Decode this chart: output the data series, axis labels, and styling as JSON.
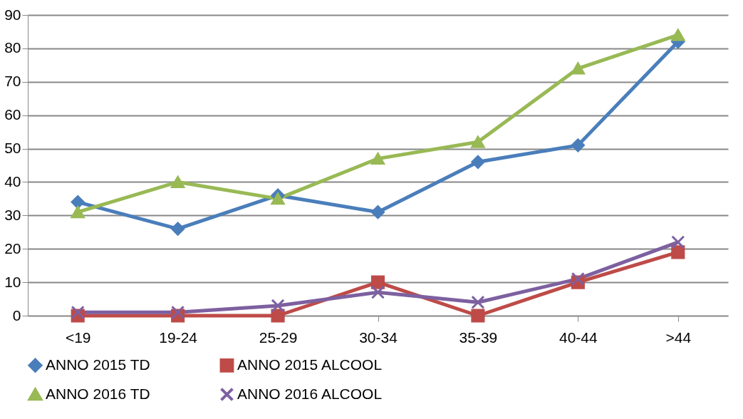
{
  "chart_data": {
    "type": "line",
    "categories": [
      "<19",
      "19-24",
      "25-29",
      "30-34",
      "35-39",
      "40-44",
      ">44"
    ],
    "series": [
      {
        "name": "ANNO 2015 TD",
        "color": "#4a7ebb",
        "marker": "diamond",
        "values": [
          34,
          26,
          36,
          31,
          46,
          51,
          82
        ]
      },
      {
        "name": "ANNO 2015 ALCOOL",
        "color": "#be4b48",
        "marker": "square",
        "values": [
          0,
          0,
          0,
          10,
          0,
          10,
          19
        ]
      },
      {
        "name": "ANNO 2016 TD",
        "color": "#98b954",
        "marker": "triangle",
        "values": [
          31,
          40,
          35,
          47,
          52,
          74,
          84
        ]
      },
      {
        "name": "ANNO 2016 ALCOOL",
        "color": "#7d60a0",
        "marker": "cross",
        "values": [
          1,
          1,
          3,
          7,
          4,
          11,
          22
        ]
      }
    ],
    "ylim": [
      0,
      90
    ],
    "yticks": [
      0,
      10,
      20,
      30,
      40,
      50,
      60,
      70,
      80,
      90
    ],
    "grid": "y",
    "legend": "bottom",
    "line_style": "solid"
  }
}
